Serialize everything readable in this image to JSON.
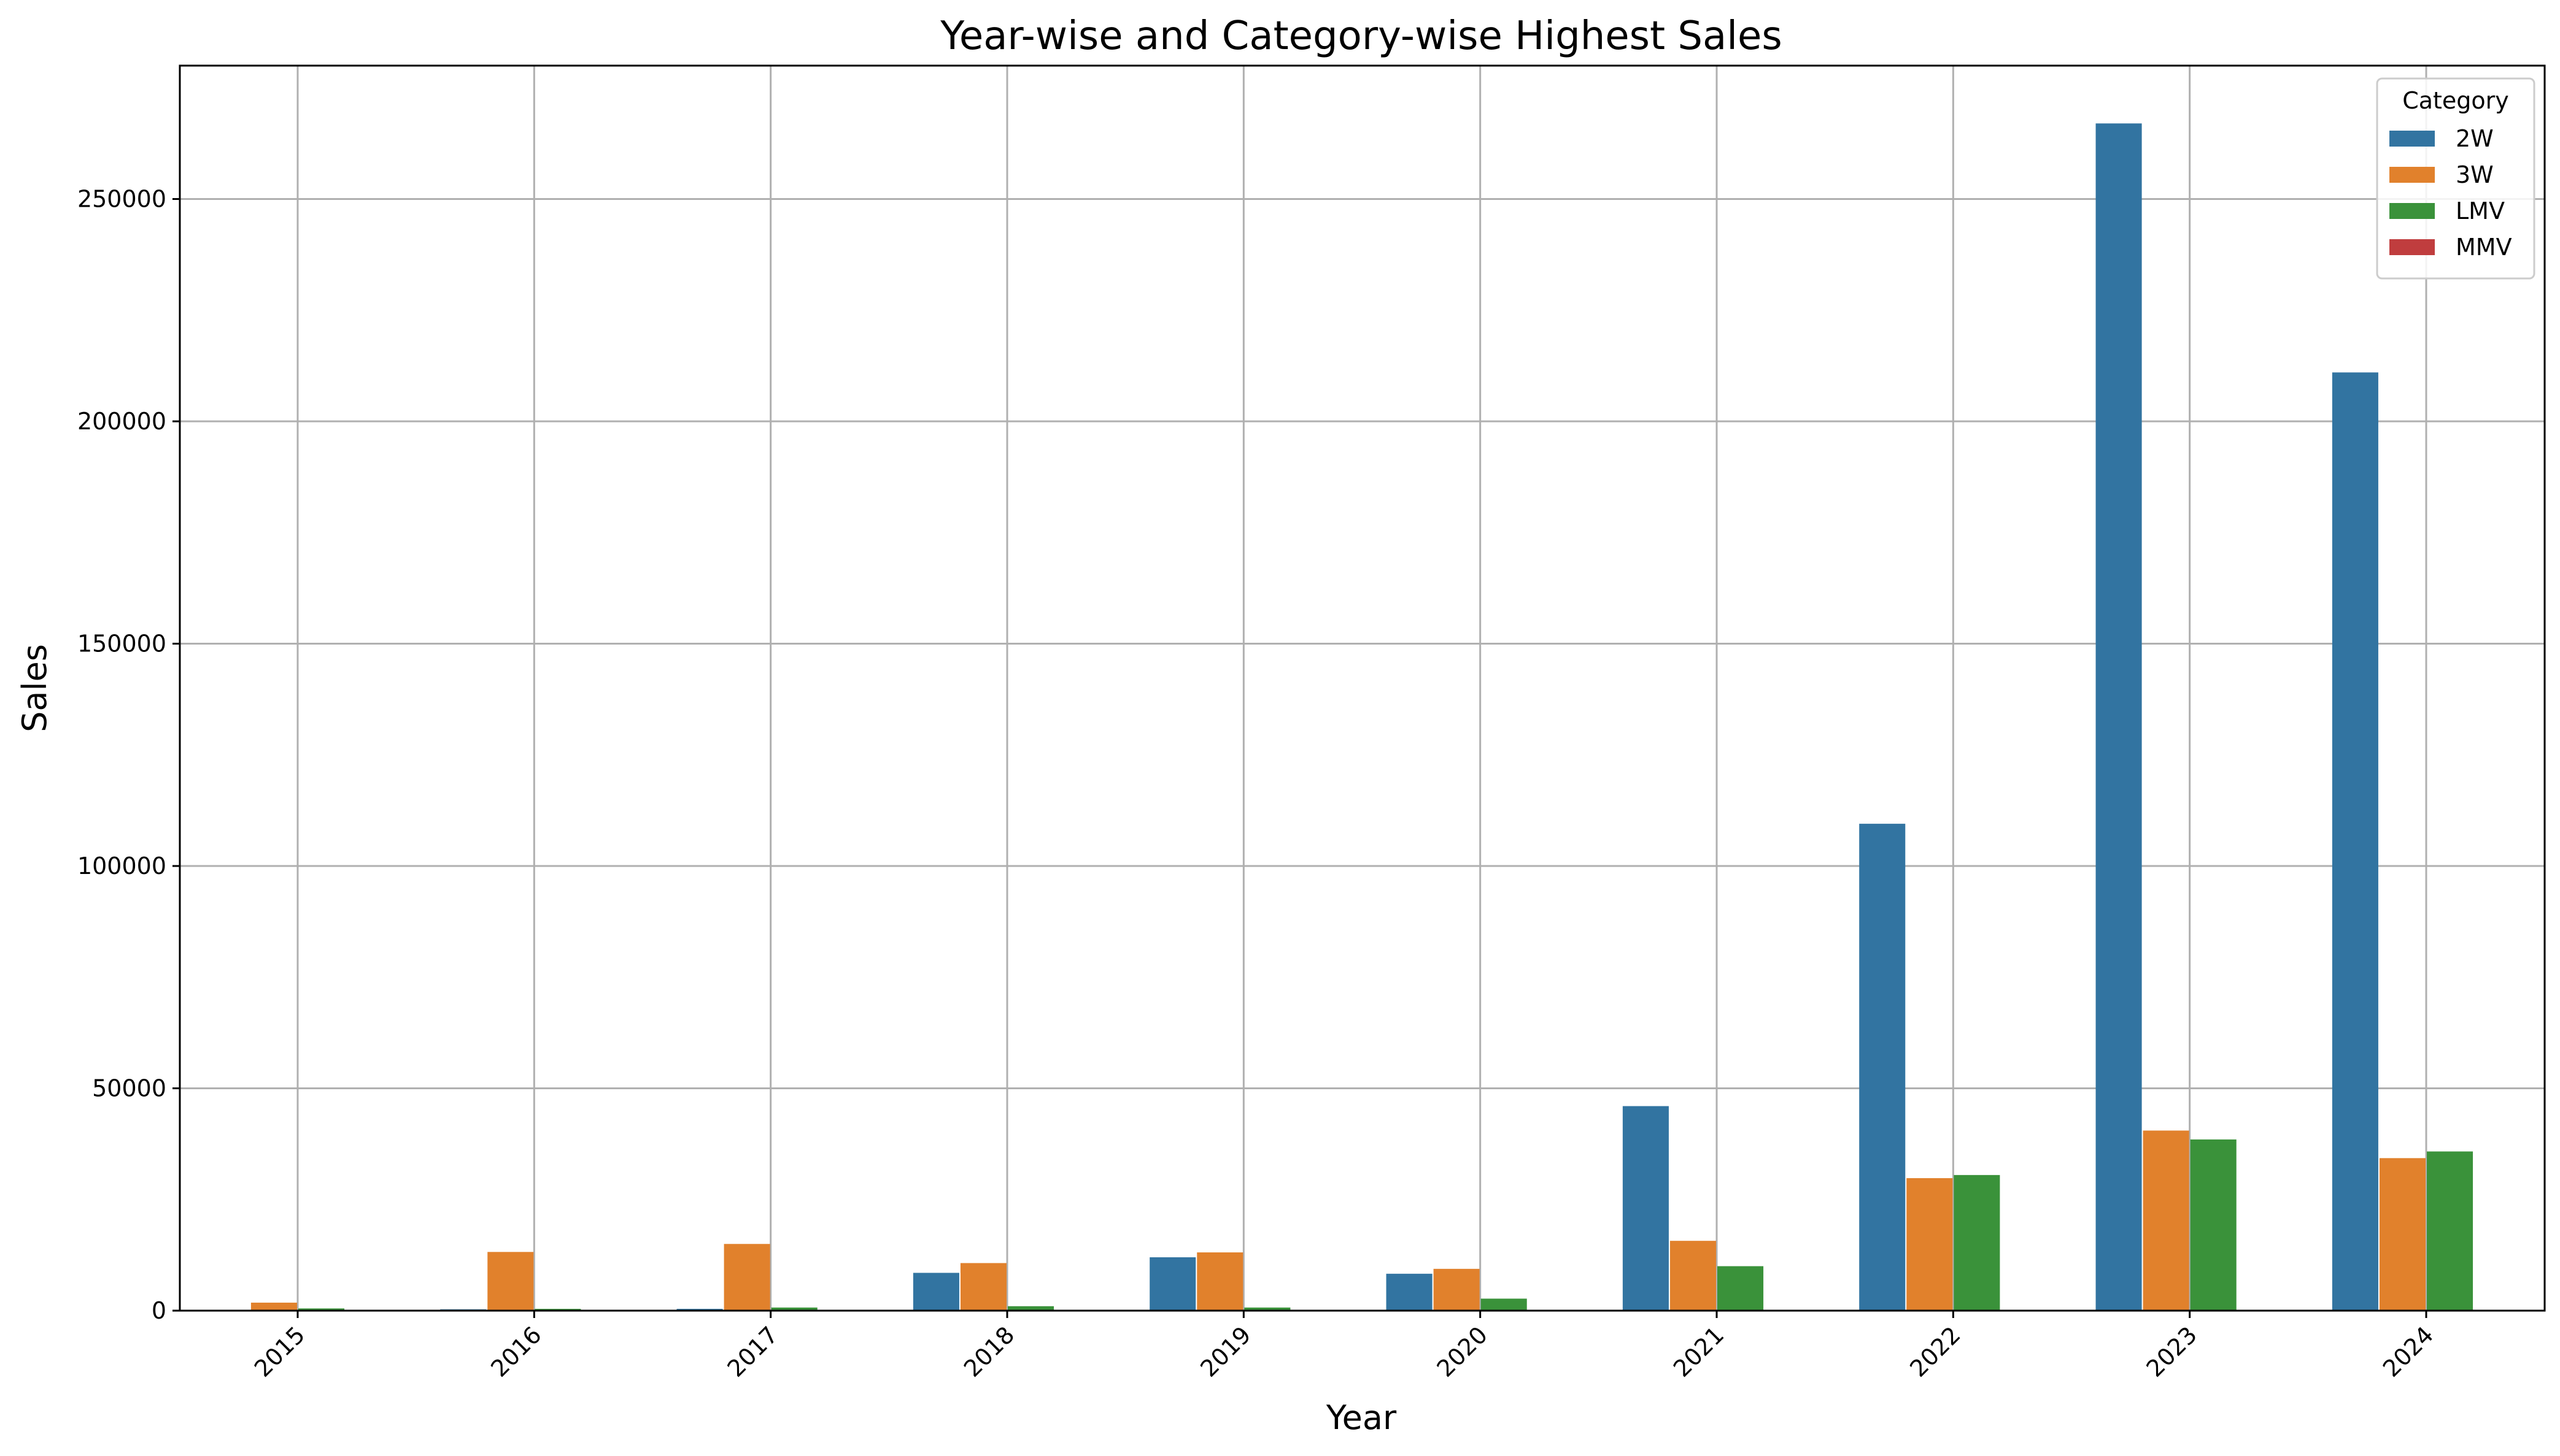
{
  "chart_data": {
    "type": "bar",
    "title": "Year-wise and Category-wise Highest Sales",
    "xlabel": "Year",
    "ylabel": "Sales",
    "categories": [
      "2015",
      "2016",
      "2017",
      "2018",
      "2019",
      "2020",
      "2021",
      "2022",
      "2023",
      "2024"
    ],
    "series": [
      {
        "name": "2W",
        "color": "#3274a1",
        "values": [
          200,
          300,
          400,
          8500,
          12000,
          8300,
          46000,
          109500,
          267000,
          211000
        ]
      },
      {
        "name": "3W",
        "color": "#e1812c",
        "values": [
          1800,
          13200,
          15000,
          10700,
          13100,
          9400,
          15700,
          29800,
          40500,
          34300
        ]
      },
      {
        "name": "LMV",
        "color": "#3a923a",
        "values": [
          500,
          400,
          700,
          1000,
          700,
          2700,
          10000,
          30500,
          38500,
          35800
        ]
      },
      {
        "name": "MMV",
        "color": "#c03d3e",
        "values": [
          0,
          0,
          0,
          0,
          0,
          0,
          150,
          0,
          150,
          0
        ]
      }
    ],
    "yticks": [
      "0",
      "50000",
      "100000",
      "150000",
      "200000",
      "250000"
    ],
    "ylim": [
      0,
      280000
    ],
    "grid": true,
    "legend": {
      "title": "Category",
      "placement": "top-right"
    }
  }
}
